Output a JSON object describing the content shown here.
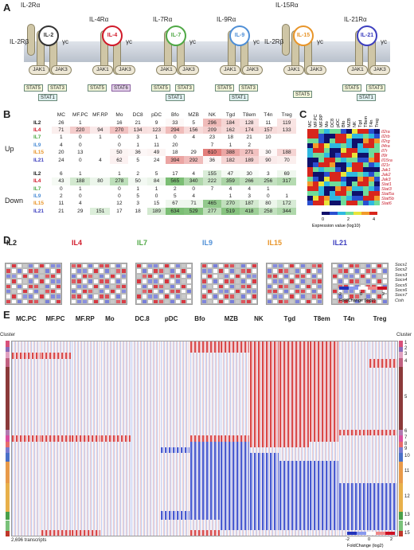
{
  "panel_letters": [
    "A",
    "B",
    "C",
    "D",
    "E"
  ],
  "panel_a": {
    "receptors": [
      {
        "cytokine": "IL-2",
        "labels": [
          "IL-2Rα",
          "IL-2Rβ",
          "γc"
        ],
        "color": "#333333",
        "stats": [
          "STAT5",
          "STAT3",
          "STAT1"
        ]
      },
      {
        "cytokine": "IL-4",
        "labels": [
          "IL-4Rα",
          "γc"
        ],
        "color": "#d11a2a",
        "stats": [
          "STAT5",
          "STAT6"
        ]
      },
      {
        "cytokine": "IL-7",
        "labels": [
          "IL-7Rα",
          "γc"
        ],
        "color": "#4fa845",
        "stats": [
          "STAT5",
          "STAT3",
          "STAT1"
        ]
      },
      {
        "cytokine": "IL-9",
        "labels": [
          "IL-9Rα",
          "γc"
        ],
        "color": "#4f8fd6",
        "stats": [
          "STAT5",
          "STAT3",
          "STAT1"
        ]
      },
      {
        "cytokine": "IL-15",
        "labels": [
          "IL-15Rα",
          "IL-2Rβ",
          "γc"
        ],
        "color": "#e8952a",
        "stats": [
          "STAT5"
        ]
      },
      {
        "cytokine": "IL-21",
        "labels": [
          "IL-21Rα",
          "γc"
        ],
        "color": "#3d3fbf",
        "stats": [
          "STAT5",
          "STAT3",
          "STAT1"
        ]
      }
    ],
    "jak_labels": [
      "JAK1",
      "JAK3"
    ]
  },
  "panel_b": {
    "columns": [
      "MC",
      "MF.PC",
      "MF.RP",
      "Mo",
      "DC8",
      "pDC",
      "Bfo",
      "MZB",
      "NK",
      "Tgd",
      "T8em",
      "T4n",
      "Treg"
    ],
    "up_label": "Up",
    "down_label": "Down",
    "up_rows": [
      {
        "label": "IL2",
        "color": "#222222",
        "values": [
          "26",
          "1",
          "",
          "16",
          "21",
          "9",
          "33",
          "5",
          "296",
          "184",
          "128",
          "11",
          "119"
        ]
      },
      {
        "label": "IL4",
        "color": "#d11a2a",
        "values": [
          "71",
          "220",
          "94",
          "270",
          "134",
          "123",
          "294",
          "156",
          "209",
          "162",
          "174",
          "157",
          "133"
        ]
      },
      {
        "label": "IL7",
        "color": "#4fa845",
        "values": [
          "1",
          "0",
          "1",
          "0",
          "3",
          "1",
          "0",
          "4",
          "23",
          "18",
          "21",
          "10",
          ""
        ]
      },
      {
        "label": "IL9",
        "color": "#4f8fd6",
        "values": [
          "4",
          "0",
          "",
          "0",
          "1",
          "11",
          "20",
          "",
          "7",
          "1",
          "2",
          "",
          ""
        ]
      },
      {
        "label": "IL15",
        "color": "#e8952a",
        "values": [
          "20",
          "13",
          "",
          "50",
          "36",
          "49",
          "18",
          "29",
          "610",
          "388",
          "271",
          "30",
          "188"
        ]
      },
      {
        "label": "IL21",
        "color": "#3d3fbf",
        "values": [
          "24",
          "0",
          "4",
          "62",
          "5",
          "24",
          "394",
          "292",
          "36",
          "182",
          "189",
          "90",
          "70"
        ]
      }
    ],
    "down_rows": [
      {
        "label": "IL2",
        "color": "#222222",
        "values": [
          "6",
          "1",
          "",
          "1",
          "2",
          "5",
          "17",
          "4",
          "155",
          "47",
          "30",
          "3",
          "69"
        ]
      },
      {
        "label": "IL4",
        "color": "#d11a2a",
        "values": [
          "43",
          "188",
          "80",
          "278",
          "50",
          "84",
          "565",
          "340",
          "222",
          "359",
          "266",
          "256",
          "317"
        ]
      },
      {
        "label": "IL7",
        "color": "#4fa845",
        "values": [
          "0",
          "1",
          "",
          "0",
          "1",
          "1",
          "2",
          "0",
          "7",
          "4",
          "4",
          "1",
          ""
        ]
      },
      {
        "label": "IL9",
        "color": "#4f8fd6",
        "values": [
          "2",
          "0",
          "",
          "0",
          "5",
          "0",
          "5",
          "4",
          "",
          "1",
          "3",
          "0",
          "1"
        ]
      },
      {
        "label": "IL15",
        "color": "#e8952a",
        "values": [
          "11",
          "4",
          "",
          "12",
          "3",
          "15",
          "67",
          "71",
          "465",
          "270",
          "187",
          "80",
          "172"
        ]
      },
      {
        "label": "IL21",
        "color": "#3d3fbf",
        "values": [
          "21",
          "29",
          "151",
          "17",
          "18",
          "189",
          "634",
          "529",
          "277",
          "519",
          "418",
          "258",
          "344"
        ]
      }
    ],
    "up_color": "#d9534f",
    "down_color": "#4fa845"
  },
  "panel_c": {
    "columns": [
      "MC",
      "MF.PC",
      "MF.RP",
      "Mo",
      "DC8",
      "pDC",
      "Bfo",
      "MZB",
      "NK",
      "Tgd",
      "T8em",
      "T4n",
      "Treg"
    ],
    "genes": [
      "Il2ra",
      "Il2rb",
      "Il2rg",
      "Il4ra",
      "Il7r",
      "Il9r",
      "Il15ra",
      "Il21r",
      "Jak1",
      "Jak2",
      "Jak3",
      "Stat1",
      "Stat3",
      "Stat5a",
      "Stat5b",
      "Stat6"
    ],
    "legend_label": "Expression value (log10)",
    "legend_ticks": [
      "0",
      "2",
      "4"
    ]
  },
  "panel_d": {
    "cytokines": [
      {
        "name": "IL2",
        "color": "#222222"
      },
      {
        "name": "IL4",
        "color": "#d11a2a"
      },
      {
        "name": "IL7",
        "color": "#4fa845"
      },
      {
        "name": "IL9",
        "color": "#4f8fd6"
      },
      {
        "name": "IL15",
        "color": "#e8952a"
      },
      {
        "name": "IL21",
        "color": "#3d3fbf"
      }
    ],
    "genes": [
      "Socs1",
      "Socs2",
      "Socs3",
      "Socs4",
      "Socs5",
      "Socs6",
      "Socs7",
      "Cish"
    ],
    "legend_label": "FoldChange (log2)",
    "legend_ticks": [
      "-2",
      "0",
      "2"
    ]
  },
  "panel_e": {
    "groups": [
      "MC.PC",
      "MF.PC",
      "MF.RP",
      "Mo",
      "DC.8",
      "pDC",
      "Bfo",
      "MZB",
      "NK",
      "Tgd",
      "T8em",
      "T4n",
      "Treg"
    ],
    "cluster_header": "Cluster",
    "clusters": [
      "1",
      "2",
      "3",
      "4",
      "5",
      "6",
      "7",
      "8",
      "9",
      "10",
      "11",
      "12",
      "13",
      "14",
      "15"
    ],
    "transcripts_label": "2,696 transcripts",
    "legend_label": "FoldChange (log2)",
    "legend_ticks": [
      "-2",
      "0",
      "2"
    ]
  }
}
